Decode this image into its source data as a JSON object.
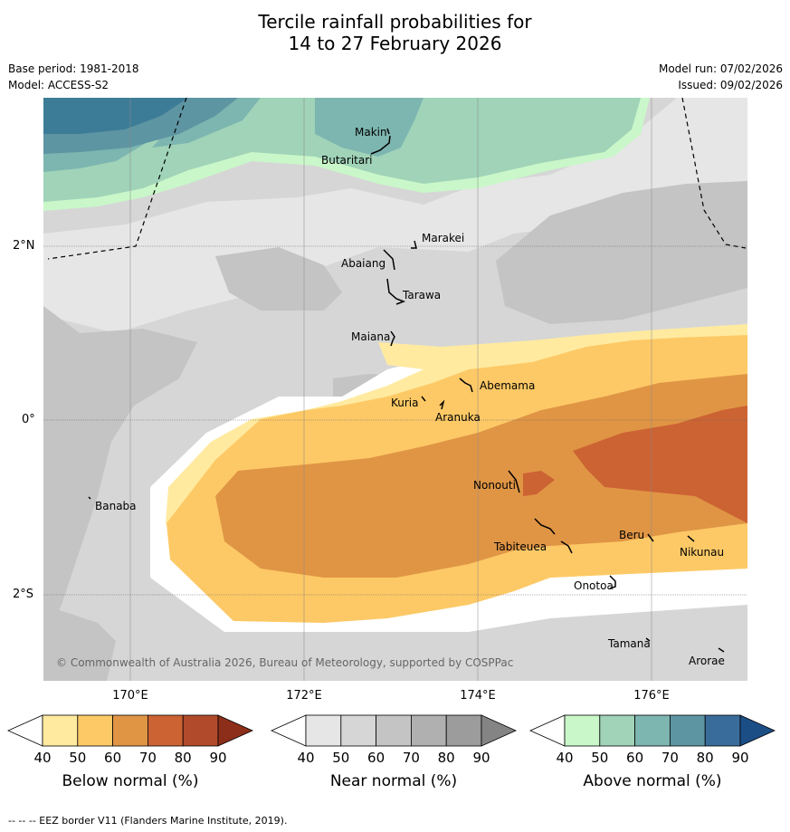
{
  "title": {
    "line1": "Tercile rainfall probabilities for",
    "line2": "14 to 27 February 2026"
  },
  "meta": {
    "base_period": "Base period: 1981-2018",
    "model": "Model: ACCESS-S2",
    "model_run": "Model run: 07/02/2026",
    "issued": "Issued: 09/02/2026"
  },
  "axes": {
    "lat_labels": [
      "2°N",
      "0°",
      "2°S"
    ],
    "lon_labels": [
      "170°E",
      "172°E",
      "174°E",
      "176°E"
    ]
  },
  "places": {
    "makin": "Makin",
    "butaritari": "Butaritari",
    "marakei": "Marakei",
    "abaiang": "Abaiang",
    "tarawa": "Tarawa",
    "maiana": "Maiana",
    "abemama": "Abemama",
    "kuria": "Kuria",
    "aranuka": "Aranuka",
    "banaba": "Banaba",
    "nonouti": "Nonouti",
    "beru": "Beru",
    "tabiteuea": "Tabiteuea",
    "nikunau": "Nikunau",
    "onotoa": "Onotoa",
    "tamana": "Tamana",
    "arorae": "Arorae"
  },
  "copyright": "© Commonwealth of Australia 2026, Bureau of Meteorology, supported by COSPPac",
  "colorbars": {
    "ticks": [
      "40",
      "50",
      "60",
      "70",
      "80",
      "90"
    ],
    "below": {
      "label": "Below normal (%)",
      "colors": [
        "#ffffff",
        "#ffeaa0",
        "#fdc966",
        "#e09545",
        "#cc6333",
        "#b14a2a",
        "#8c2e1a"
      ]
    },
    "near": {
      "label": "Near normal (%)",
      "colors": [
        "#ffffff",
        "#e6e6e6",
        "#d6d6d6",
        "#c4c4c4",
        "#b0b0b0",
        "#9c9c9c",
        "#848484"
      ]
    },
    "above": {
      "label": "Above normal (%)",
      "colors": [
        "#ffffff",
        "#c9f7c9",
        "#a0d3b8",
        "#7db5b0",
        "#5e95a2",
        "#3a6c9b",
        "#1c4e86"
      ]
    }
  },
  "footer": "--  --  -- EEZ border V11 (Flanders Marine Institute, 2019)."
}
